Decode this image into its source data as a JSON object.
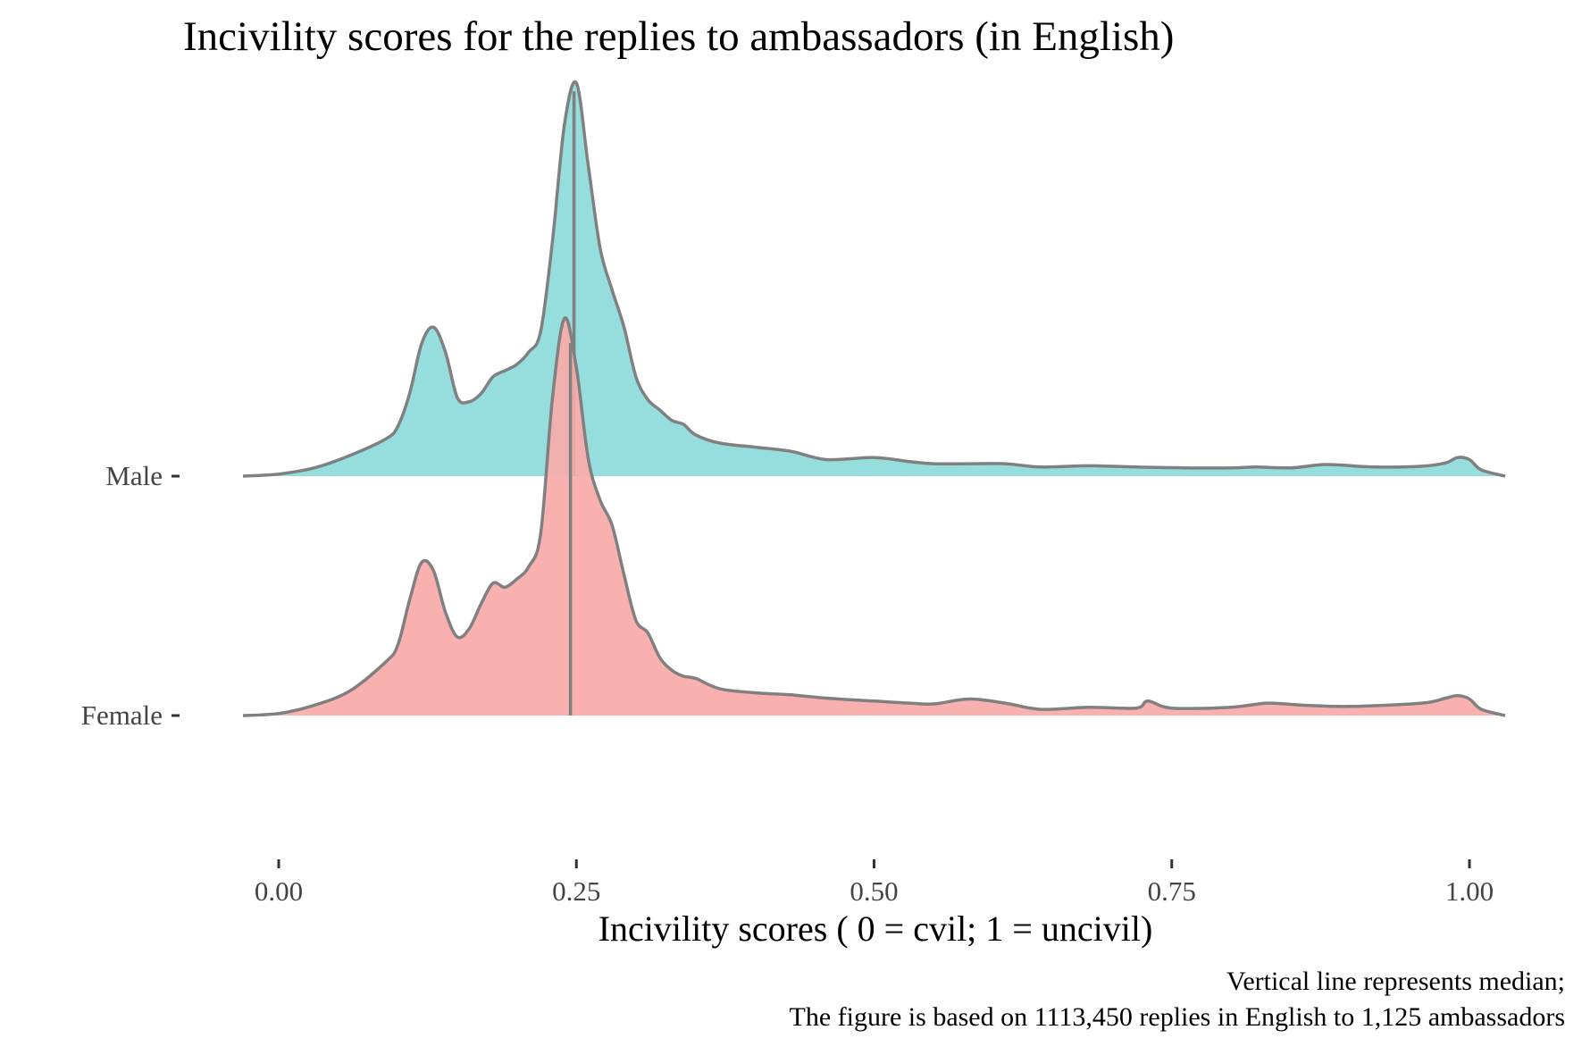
{
  "chart_data": {
    "type": "area",
    "title": "Incivility scores for the replies to ambassadors (in English)",
    "xlabel": "Incivility scores ( 0 = cvil; 1 = uncivil)",
    "ylabel": "",
    "xlim": [
      -0.03,
      1.03
    ],
    "xticks": [
      0.0,
      0.25,
      0.5,
      0.75,
      1.0
    ],
    "xtick_labels": [
      "0.00",
      "0.25",
      "0.50",
      "0.75",
      "1.00"
    ],
    "categories": [
      "Male",
      "Female"
    ],
    "caption": [
      "Vertical line represents median;",
      "The figure is based on 1113,450 replies in English to 1,125 ambassadors"
    ],
    "grid": false,
    "colors": {
      "Male": "#8DDADB",
      "Female": "#F8AAA9",
      "line": "#808080"
    },
    "density_ylim": [
      0,
      9.5
    ],
    "series": [
      {
        "name": "Male",
        "median": 0.248,
        "x": [
          -0.03,
          0.0,
          0.03,
          0.06,
          0.09,
          0.1,
          0.11,
          0.12,
          0.13,
          0.14,
          0.15,
          0.16,
          0.17,
          0.18,
          0.19,
          0.2,
          0.21,
          0.22,
          0.23,
          0.24,
          0.25,
          0.26,
          0.27,
          0.28,
          0.29,
          0.3,
          0.31,
          0.32,
          0.33,
          0.34,
          0.35,
          0.37,
          0.4,
          0.43,
          0.46,
          0.5,
          0.53,
          0.55,
          0.58,
          0.61,
          0.64,
          0.68,
          0.72,
          0.76,
          0.8,
          0.82,
          0.85,
          0.88,
          0.92,
          0.96,
          0.98,
          0.99,
          1.0,
          1.01,
          1.03
        ],
        "y": [
          0.0,
          0.05,
          0.2,
          0.5,
          0.9,
          1.2,
          2.0,
          3.2,
          3.6,
          3.0,
          1.9,
          1.8,
          2.0,
          2.4,
          2.55,
          2.7,
          3.0,
          3.5,
          5.7,
          8.5,
          9.5,
          7.5,
          5.5,
          4.5,
          3.6,
          2.4,
          1.85,
          1.6,
          1.35,
          1.25,
          1.0,
          0.8,
          0.7,
          0.6,
          0.4,
          0.45,
          0.35,
          0.3,
          0.3,
          0.3,
          0.22,
          0.25,
          0.22,
          0.2,
          0.2,
          0.22,
          0.2,
          0.28,
          0.22,
          0.24,
          0.32,
          0.45,
          0.4,
          0.15,
          0.0
        ]
      },
      {
        "name": "Female",
        "median": 0.245,
        "x": [
          -0.03,
          0.0,
          0.03,
          0.06,
          0.09,
          0.1,
          0.11,
          0.12,
          0.13,
          0.14,
          0.15,
          0.16,
          0.17,
          0.18,
          0.19,
          0.2,
          0.21,
          0.22,
          0.23,
          0.24,
          0.25,
          0.26,
          0.27,
          0.28,
          0.29,
          0.3,
          0.31,
          0.32,
          0.33,
          0.34,
          0.35,
          0.37,
          0.4,
          0.43,
          0.46,
          0.5,
          0.53,
          0.55,
          0.58,
          0.61,
          0.64,
          0.68,
          0.72,
          0.73,
          0.75,
          0.8,
          0.83,
          0.86,
          0.9,
          0.96,
          0.98,
          0.99,
          1.0,
          1.01,
          1.03
        ],
        "y": [
          0.0,
          0.05,
          0.25,
          0.6,
          1.3,
          1.7,
          2.8,
          3.7,
          3.5,
          2.5,
          1.9,
          2.1,
          2.7,
          3.2,
          3.1,
          3.3,
          3.6,
          4.4,
          7.7,
          9.6,
          8.4,
          6.2,
          5.2,
          4.6,
          3.4,
          2.3,
          2.0,
          1.4,
          1.1,
          0.95,
          0.9,
          0.65,
          0.55,
          0.5,
          0.42,
          0.35,
          0.3,
          0.28,
          0.4,
          0.3,
          0.15,
          0.2,
          0.18,
          0.35,
          0.18,
          0.2,
          0.3,
          0.25,
          0.22,
          0.3,
          0.42,
          0.48,
          0.4,
          0.15,
          0.0
        ]
      }
    ]
  }
}
